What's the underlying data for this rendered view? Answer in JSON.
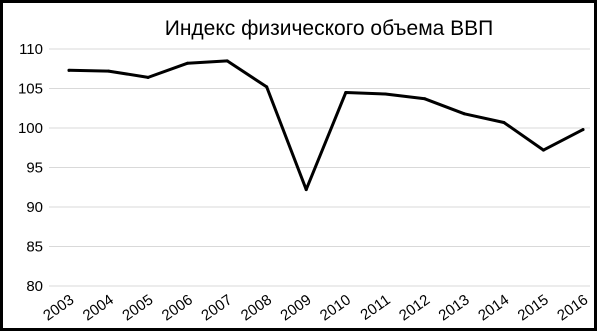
{
  "chart_data": {
    "type": "line",
    "title": "Индекс физического объема ВВП",
    "categories": [
      "2003",
      "2004",
      "2005",
      "2006",
      "2007",
      "2008",
      "2009",
      "2010",
      "2011",
      "2012",
      "2013",
      "2014",
      "2015",
      "2016"
    ],
    "series": [
      {
        "values": [
          107.3,
          107.2,
          106.4,
          108.2,
          108.5,
          105.2,
          92.2,
          104.5,
          104.3,
          103.7,
          101.8,
          100.7,
          97.2,
          99.8
        ]
      }
    ],
    "ylim": [
      80,
      110
    ],
    "yticks": [
      "80",
      "85",
      "90",
      "95",
      "100",
      "105",
      "110"
    ],
    "grid": true,
    "line_color": "#000000",
    "grid_color": "#d9d9d9"
  }
}
